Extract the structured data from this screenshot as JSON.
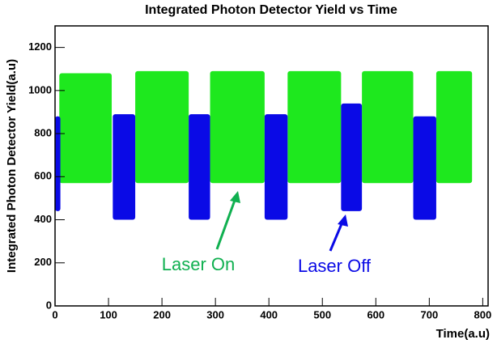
{
  "chart_data": {
    "type": "band",
    "title": "Integrated Photon Detector Yield vs Time",
    "x_label": "Time(a.u)",
    "y_label": "Integrated Photon Detector Yield(a.u)",
    "xlim": [
      0,
      810
    ],
    "ylim": [
      0,
      1300
    ],
    "xticks": [
      0,
      100,
      200,
      300,
      400,
      500,
      600,
      700,
      800
    ],
    "yticks": [
      0,
      200,
      400,
      600,
      800,
      1000,
      1200
    ],
    "series": [
      {
        "name": "Laser On",
        "color": "#1ee81e",
        "segments": [
          {
            "x": [
              8,
              106
            ],
            "y": [
              570,
              1080
            ]
          },
          {
            "x": [
              150,
              250
            ],
            "y": [
              570,
              1090
            ]
          },
          {
            "x": [
              290,
              392
            ],
            "y": [
              570,
              1090
            ]
          },
          {
            "x": [
              435,
              535
            ],
            "y": [
              570,
              1090
            ]
          },
          {
            "x": [
              574,
              670
            ],
            "y": [
              570,
              1090
            ]
          },
          {
            "x": [
              713,
              780
            ],
            "y": [
              570,
              1090
            ]
          }
        ]
      },
      {
        "name": "Laser Off",
        "color": "#0a0ae6",
        "segments": [
          {
            "x": [
              0,
              10
            ],
            "y": [
              440,
              880
            ]
          },
          {
            "x": [
              108,
              150
            ],
            "y": [
              400,
              890
            ]
          },
          {
            "x": [
              250,
              290
            ],
            "y": [
              400,
              890
            ]
          },
          {
            "x": [
              392,
              435
            ],
            "y": [
              400,
              890
            ]
          },
          {
            "x": [
              535,
              574
            ],
            "y": [
              440,
              940
            ]
          },
          {
            "x": [
              670,
              713
            ],
            "y": [
              400,
              880
            ]
          }
        ]
      }
    ]
  }
}
